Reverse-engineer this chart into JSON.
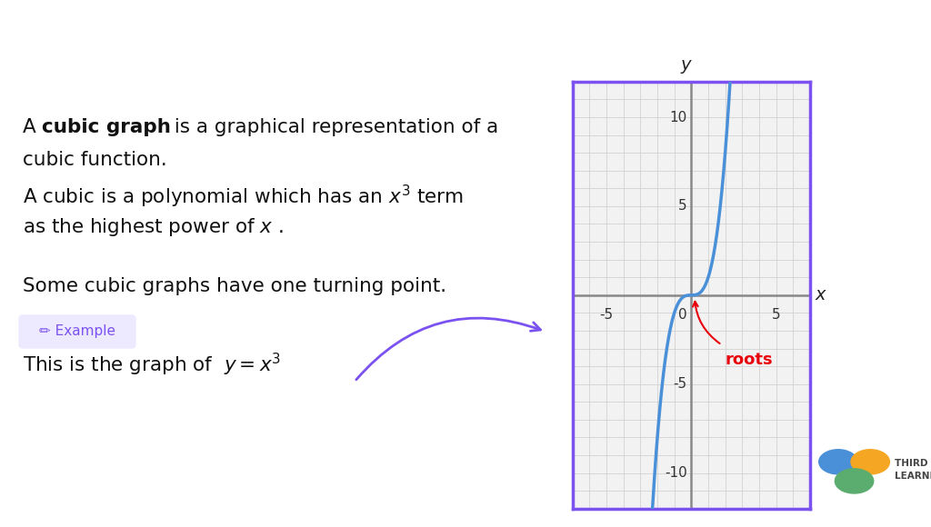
{
  "header_bg_color": "#7B52F0",
  "header_text_color": "#FFFFFF",
  "body_bg_color": "#FFFFFF",
  "curve_color": "#4A90D9",
  "axis_color": "#555555",
  "grid_color": "#CCCCCC",
  "border_color": "#7B52F0",
  "xlim": [
    -7,
    7
  ],
  "ylim": [
    -12,
    12
  ],
  "roots_color": "#E8000B",
  "arrow_color": "#7B52F0",
  "example_bg": "#EDE9FF",
  "example_text_color": "#7B52F0",
  "logo_blue": "#4A90D9",
  "logo_yellow": "#F5A623",
  "logo_green": "#5BAD6F",
  "logo_color": "#444444"
}
